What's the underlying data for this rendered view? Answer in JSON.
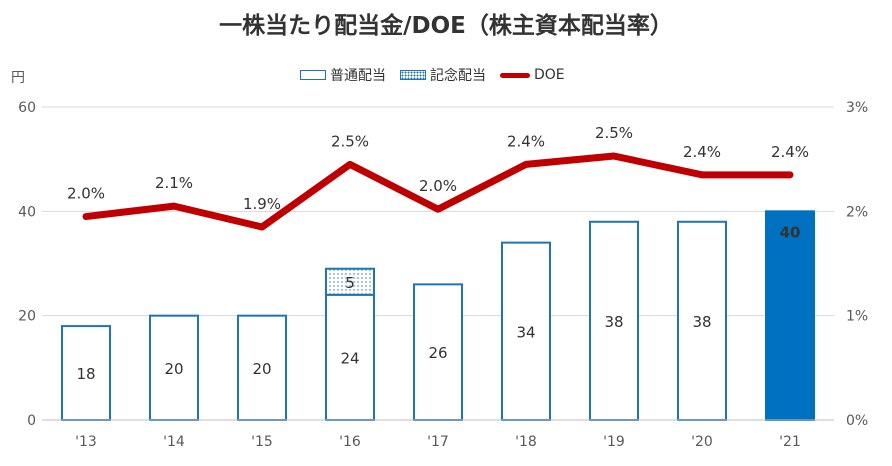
{
  "chart_data": {
    "type": "bar",
    "title": "一株当たり配当金/DOE（株主資本配当率）",
    "y_unit_label": "円",
    "categories": [
      "'13",
      "'14",
      "'15",
      "'16",
      "'17",
      "'18",
      "'19",
      "'20",
      "'21"
    ],
    "series": [
      {
        "name": "普通配当",
        "values": [
          18,
          20,
          20,
          24,
          26,
          34,
          38,
          38,
          40
        ]
      },
      {
        "name": "記念配当",
        "values": [
          0,
          0,
          0,
          5,
          0,
          0,
          0,
          0,
          0
        ]
      },
      {
        "name": "DOE",
        "type": "line",
        "axis": "right",
        "values": [
          1.95,
          2.05,
          1.85,
          2.45,
          2.02,
          2.45,
          2.53,
          2.35,
          2.35
        ],
        "labels": [
          "2.0%",
          "2.1%",
          "1.9%",
          "2.5%",
          "2.0%",
          "2.4%",
          "2.5%",
          "2.4%",
          "2.4%"
        ]
      }
    ],
    "ylim": [
      0,
      60
    ],
    "y_ticks": [
      "0",
      "20",
      "40",
      "60"
    ],
    "y2lim": [
      0,
      3
    ],
    "y2_ticks": [
      "0%",
      "1%",
      "2%",
      "3%"
    ],
    "highlight_index": 8,
    "grid": true,
    "legend": "top-center",
    "colors": {
      "bar_border": "#1f74b6",
      "bar_fill": "#ffffff",
      "highlight": "#0070c0",
      "line": "#c00000",
      "grid": "#d9d9d9"
    }
  },
  "legend_labels": {
    "regular": "普通配当",
    "commemorative": "記念配当",
    "doe": "DOE"
  }
}
